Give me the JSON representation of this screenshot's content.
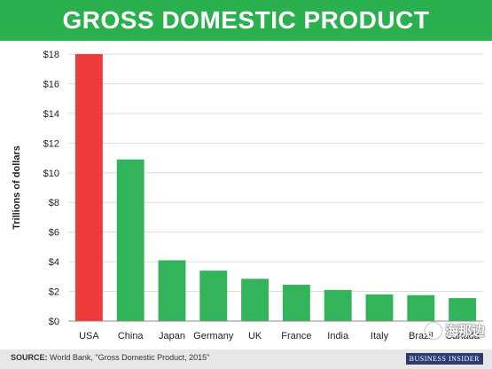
{
  "title": "GROSS DOMESTIC PRODUCT",
  "chart_data": {
    "type": "bar",
    "categories": [
      "USA",
      "China",
      "Japan",
      "Germany",
      "UK",
      "France",
      "India",
      "Italy",
      "Brazil",
      "Canada"
    ],
    "values": [
      18.0,
      10.9,
      4.1,
      3.4,
      2.85,
      2.45,
      2.1,
      1.8,
      1.75,
      1.55
    ],
    "ylabel": "Trillions of dollars",
    "xlabel": "",
    "ylim": [
      0,
      18
    ],
    "yticks": [
      "$0",
      "$2",
      "$4",
      "$6",
      "$8",
      "$10",
      "$12",
      "$14",
      "$16",
      "$18"
    ],
    "grid": true,
    "highlight_color": "#ee3b3b",
    "bar_color": "#33b35a",
    "highlight_category": "USA"
  },
  "footer": {
    "source_label": "SOURCE:",
    "source_text": "World Bank, \"Gross Domestic Product, 2015\"",
    "brand": "BUSINESS INSIDER"
  },
  "watermark": {
    "text": "海那边",
    "icon": "wechat-icon"
  }
}
